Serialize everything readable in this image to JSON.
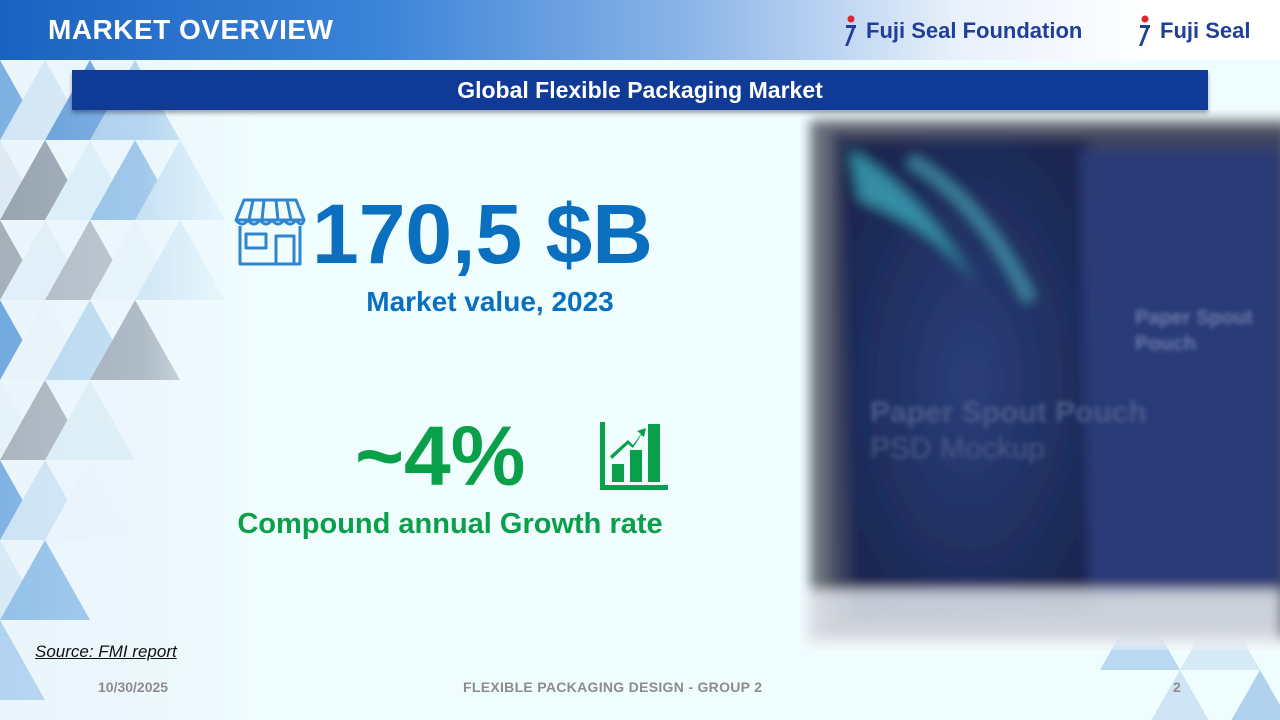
{
  "header": {
    "title": "MARKET OVERVIEW",
    "logos": [
      {
        "text": "Fuji Seal Foundation",
        "icon": "fuji-seal-mark-icon"
      },
      {
        "text": "Fuji Seal",
        "icon": "fuji-seal-mark-icon"
      }
    ]
  },
  "banner": {
    "title": "Global Flexible Packaging Market"
  },
  "market_value": {
    "icon": "storefront-icon",
    "value": "170,5 $B",
    "caption": "Market value, 2023"
  },
  "growth": {
    "icon": "bar-chart-growth-icon",
    "value": "~4%",
    "caption": "Compound annual Growth rate"
  },
  "photo": {
    "labels": [
      "Paper Spout Pouch",
      "PSD Mockup",
      "Paper Spout Pouch"
    ]
  },
  "source": "Source: FMI report",
  "footer": {
    "date": "10/30/2025",
    "title": "FLEXIBLE PACKAGING DESIGN - GROUP 2",
    "page": "2"
  },
  "colors": {
    "header_blue": "#1a62c0",
    "banner_navy": "#0f3a96",
    "value_blue": "#0a6fbf",
    "growth_green": "#0aa04a",
    "footer_gray": "#8c8c8c"
  }
}
